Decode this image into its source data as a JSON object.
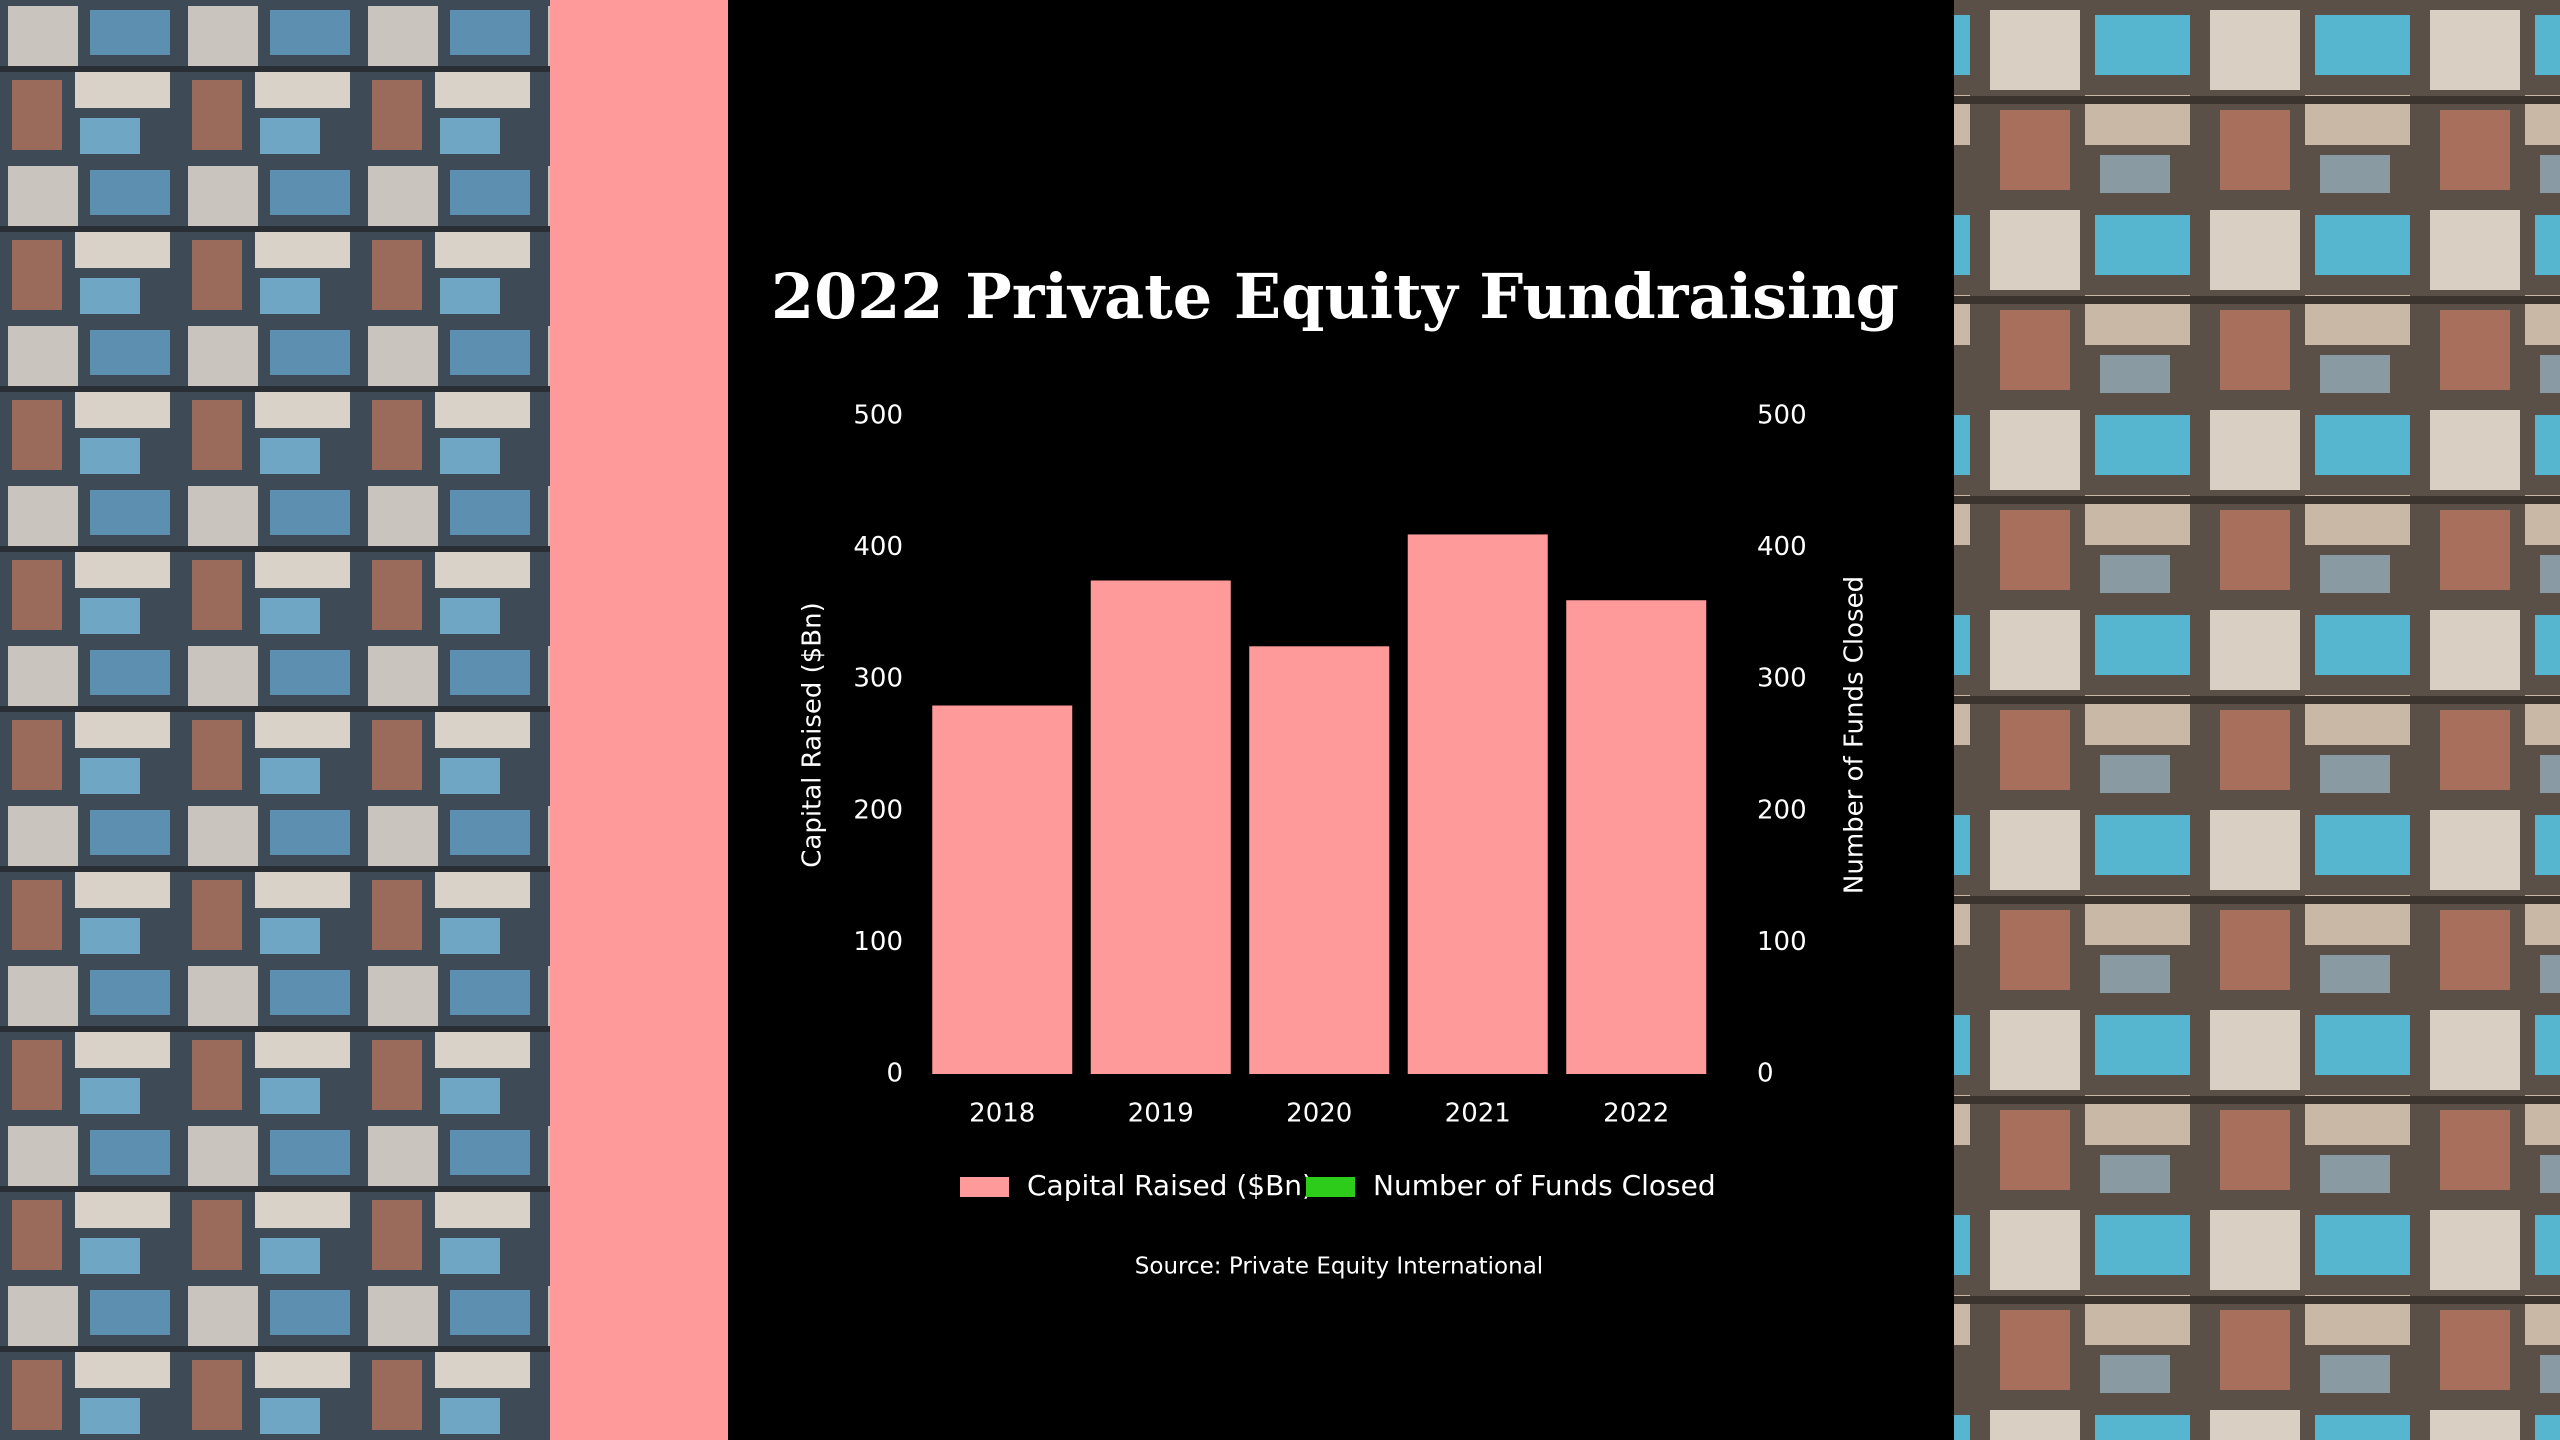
{
  "chart_data": {
    "type": "bar",
    "title": "2022 Private Equity Fundraising",
    "categories": [
      "2018",
      "2019",
      "2020",
      "2021",
      "2022"
    ],
    "series": [
      {
        "name": "Capital Raised ($Bn)",
        "color": "#ff9a9a",
        "values": [
          280,
          375,
          325,
          410,
          360
        ]
      },
      {
        "name": "Number of Funds Closed",
        "color": "#2ecc1a",
        "axis": "y2",
        "values": [
          null,
          null,
          null,
          null,
          null
        ]
      }
    ],
    "ylabel": "Capital Raised ($Bn)",
    "y2label": "Number of Funds Closed",
    "ylim": [
      0,
      500
    ],
    "yticks": [
      0,
      100,
      200,
      300,
      400,
      500
    ],
    "y2lim": [
      0,
      500
    ],
    "y2ticks": [
      0,
      100,
      200,
      300,
      400,
      500
    ],
    "grid": false,
    "legend": "bottom",
    "source": "Source: Private Equity International"
  }
}
